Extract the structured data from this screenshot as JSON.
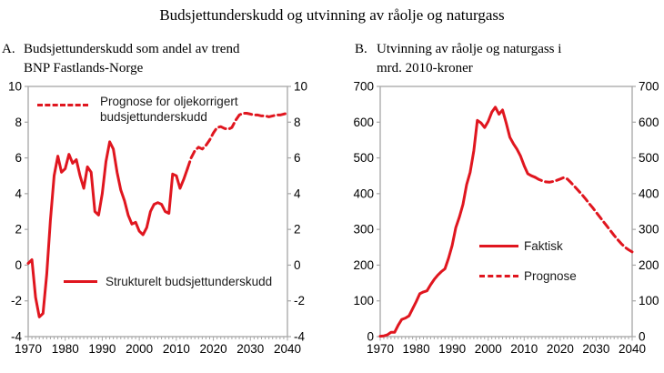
{
  "title": "Budsjettunderskudd og utvinning av råolje og naturgass",
  "colors": {
    "line_red": "#e0161f",
    "axis_gray": "#a6a6a6",
    "text_black": "#000000"
  },
  "chart_data": [
    {
      "id": "panel-a",
      "type": "line",
      "prefix": "A.",
      "title_line1": "Budsjettunderskudd som andel av trend",
      "title_line2": "BNP Fastlands-Norge",
      "xlim": [
        1970,
        2040
      ],
      "ylim": [
        -4,
        10
      ],
      "xticks": [
        1970,
        1980,
        1990,
        2000,
        2010,
        2020,
        2030,
        2040
      ],
      "yticks": [
        -4,
        -2,
        0,
        2,
        4,
        6,
        8,
        10
      ],
      "grid": false,
      "legend": [
        {
          "id": "prognose-oljekorrigert",
          "label": "Prognose for oljekorrigert budsjettunderskudd",
          "style": "dashed"
        },
        {
          "id": "strukturelt",
          "label": "Strukturelt budsjettunderskudd",
          "style": "solid"
        }
      ],
      "series": [
        {
          "id": "strukturelt-budsjettunderskudd",
          "name": "Strukturelt budsjettunderskudd",
          "style": "solid",
          "x_start": 1970,
          "x_step": 1,
          "values": [
            0.1,
            0.3,
            -1.8,
            -2.9,
            -2.7,
            -0.5,
            2.5,
            5.0,
            6.1,
            5.2,
            5.4,
            6.2,
            5.7,
            5.9,
            5.0,
            4.3,
            5.5,
            5.2,
            3.0,
            2.8,
            4.0,
            5.8,
            6.9,
            6.5,
            5.2,
            4.2,
            3.6,
            2.8,
            2.3,
            2.4,
            1.9,
            1.7,
            2.1,
            3.0,
            3.4,
            3.5,
            3.4,
            3.0,
            2.9,
            5.1,
            5.0,
            4.3,
            4.8,
            5.4
          ]
        },
        {
          "id": "prognose-oljekorrigert-budsjettunderskudd",
          "name": "Prognose for oljekorrigert budsjettunderskudd",
          "style": "dashed",
          "x_start": 2013,
          "x_step": 1,
          "values": [
            5.4,
            6.0,
            6.4,
            6.6,
            6.5,
            6.7,
            7.0,
            7.4,
            7.7,
            7.75,
            7.65,
            7.6,
            7.7,
            8.1,
            8.4,
            8.5,
            8.5,
            8.45,
            8.4,
            8.4,
            8.35,
            8.35,
            8.3,
            8.35,
            8.4,
            8.4,
            8.45,
            8.5
          ]
        }
      ]
    },
    {
      "id": "panel-b",
      "type": "line",
      "prefix": "B.",
      "title_line1": "Utvinning av råolje og naturgass i",
      "title_line2": "mrd. 2010-kroner",
      "xlim": [
        1970,
        2040
      ],
      "ylim": [
        0,
        700
      ],
      "xticks": [
        1970,
        1980,
        1990,
        2000,
        2010,
        2020,
        2030,
        2040
      ],
      "yticks": [
        0,
        100,
        200,
        300,
        400,
        500,
        600,
        700
      ],
      "grid": false,
      "legend": [
        {
          "id": "faktisk",
          "label": "Faktisk",
          "style": "solid"
        },
        {
          "id": "prognose",
          "label": "Prognose",
          "style": "dashed"
        }
      ],
      "series": [
        {
          "id": "faktisk-utvinning",
          "name": "Faktisk",
          "style": "solid",
          "x_start": 1970,
          "x_step": 1,
          "values": [
            1,
            2,
            5,
            12,
            12,
            32,
            48,
            52,
            58,
            78,
            98,
            120,
            125,
            128,
            145,
            160,
            172,
            182,
            190,
            220,
            255,
            305,
            335,
            370,
            425,
            460,
            520,
            605,
            598,
            585,
            602,
            628,
            642,
            622,
            634,
            598,
            558,
            540,
            524,
            505,
            478,
            456,
            450,
            446
          ]
        },
        {
          "id": "prognose-utvinning",
          "name": "Prognose",
          "style": "dashed",
          "x_start": 2013,
          "x_step": 1,
          "values": [
            446,
            440,
            436,
            433,
            432,
            434,
            437,
            441,
            445,
            441,
            431,
            420,
            409,
            398,
            386,
            373,
            361,
            348,
            335,
            322,
            309,
            296,
            283,
            271,
            260,
            250,
            243,
            237
          ]
        }
      ]
    }
  ]
}
